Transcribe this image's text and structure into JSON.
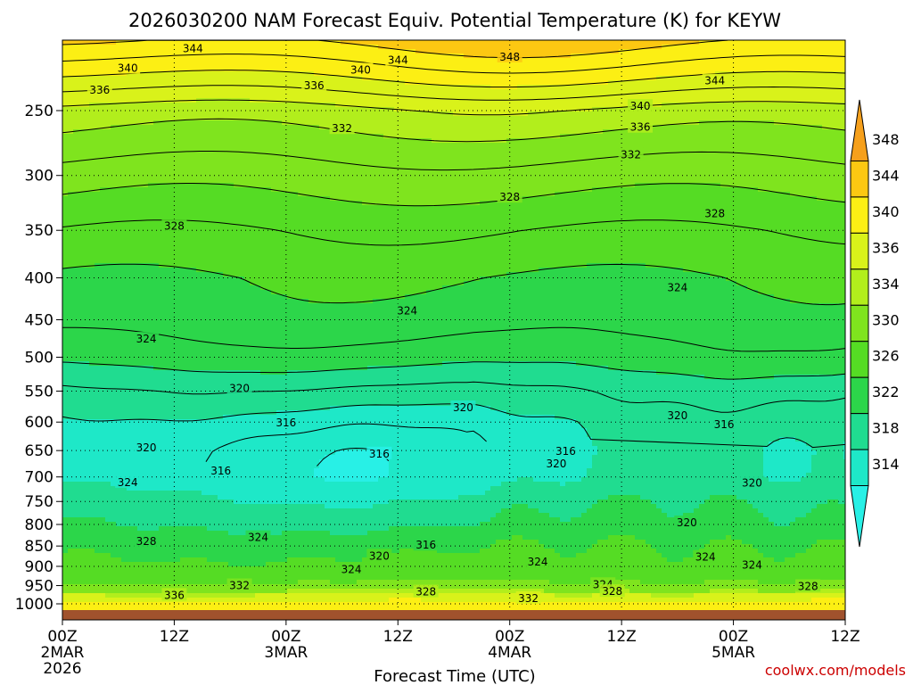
{
  "chart_data": {
    "type": "heatmap",
    "title": "2026030200 NAM Forecast Equiv. Potential Temperature (K) for KEYW",
    "xlabel": "Forecast Time (UTC)",
    "ylabel": "",
    "credit": "coolwx.com/models",
    "x_range_hours": [
      0,
      84
    ],
    "y_range_hpa": [
      1000,
      200
    ],
    "y_scale": "log",
    "grid": true,
    "x_ticks": [
      {
        "hour": 0,
        "label": "00Z",
        "sub": "2MAR",
        "sub2": "2026"
      },
      {
        "hour": 12,
        "label": "12Z",
        "sub": "",
        "sub2": ""
      },
      {
        "hour": 24,
        "label": "00Z",
        "sub": "3MAR",
        "sub2": ""
      },
      {
        "hour": 36,
        "label": "12Z",
        "sub": "",
        "sub2": ""
      },
      {
        "hour": 48,
        "label": "00Z",
        "sub": "4MAR",
        "sub2": ""
      },
      {
        "hour": 60,
        "label": "12Z",
        "sub": "",
        "sub2": ""
      },
      {
        "hour": 72,
        "label": "00Z",
        "sub": "5MAR",
        "sub2": ""
      },
      {
        "hour": 84,
        "label": "12Z",
        "sub": "",
        "sub2": ""
      }
    ],
    "y_ticks": [
      250,
      300,
      350,
      400,
      450,
      500,
      550,
      600,
      650,
      700,
      750,
      800,
      850,
      900,
      950,
      1000
    ],
    "y_tick_labels": [
      "250",
      "300",
      "350",
      "400",
      "450",
      "500",
      "550",
      "600",
      "650",
      "700",
      "750",
      "800",
      "850",
      "900",
      "950",
      "1000"
    ],
    "colorbar": {
      "labels": [
        "348",
        "344",
        "340",
        "336",
        "334",
        "330",
        "326",
        "322",
        "318",
        "314"
      ],
      "colors": [
        "#f6a01c",
        "#fcc812",
        "#fcef14",
        "#d9f21a",
        "#b2ee1c",
        "#7fe41e",
        "#55dc24",
        "#2cd64a",
        "#20dc90",
        "#1ee8c8",
        "#28f0e6"
      ]
    },
    "ground_color": "#a0522d",
    "profile_levels_hpa": [
      1000,
      975,
      950,
      925,
      900,
      850,
      800,
      750,
      700,
      650,
      600,
      550,
      500,
      450,
      400,
      350,
      300,
      250,
      225,
      200
    ],
    "profile_theta_e_k": [
      342,
      336,
      331,
      328,
      327,
      325,
      322,
      320,
      317,
      317,
      318,
      320,
      323,
      325,
      326,
      328,
      331,
      335,
      340,
      345
    ],
    "contour_labels": [
      {
        "text": "344",
        "hour": 14,
        "p": 210
      },
      {
        "text": "340",
        "hour": 7,
        "p": 222
      },
      {
        "text": "336",
        "hour": 4,
        "p": 236
      },
      {
        "text": "344",
        "hour": 36,
        "p": 217
      },
      {
        "text": "348",
        "hour": 48,
        "p": 215
      },
      {
        "text": "340",
        "hour": 32,
        "p": 223
      },
      {
        "text": "336",
        "hour": 27,
        "p": 233
      },
      {
        "text": "332",
        "hour": 30,
        "p": 263
      },
      {
        "text": "344",
        "hour": 70,
        "p": 230
      },
      {
        "text": "340",
        "hour": 62,
        "p": 247
      },
      {
        "text": "336",
        "hour": 62,
        "p": 262
      },
      {
        "text": "332",
        "hour": 61,
        "p": 283
      },
      {
        "text": "328",
        "hour": 48,
        "p": 319
      },
      {
        "text": "328",
        "hour": 70,
        "p": 334
      },
      {
        "text": "328",
        "hour": 12,
        "p": 346
      },
      {
        "text": "324",
        "hour": 66,
        "p": 411
      },
      {
        "text": "324",
        "hour": 37,
        "p": 439
      },
      {
        "text": "324",
        "hour": 9,
        "p": 475
      },
      {
        "text": "320",
        "hour": 19,
        "p": 546
      },
      {
        "text": "320",
        "hour": 43,
        "p": 576
      },
      {
        "text": "320",
        "hour": 66,
        "p": 589
      },
      {
        "text": "316",
        "hour": 24,
        "p": 601
      },
      {
        "text": "316",
        "hour": 71,
        "p": 604
      },
      {
        "text": "320",
        "hour": 9,
        "p": 645
      },
      {
        "text": "316",
        "hour": 34,
        "p": 656
      },
      {
        "text": "316",
        "hour": 54,
        "p": 651
      },
      {
        "text": "320",
        "hour": 53,
        "p": 675
      },
      {
        "text": "316",
        "hour": 17,
        "p": 688
      },
      {
        "text": "324",
        "hour": 7,
        "p": 711
      },
      {
        "text": "320",
        "hour": 74,
        "p": 712
      },
      {
        "text": "320",
        "hour": 67,
        "p": 796
      },
      {
        "text": "328",
        "hour": 9,
        "p": 839
      },
      {
        "text": "324",
        "hour": 21,
        "p": 830
      },
      {
        "text": "316",
        "hour": 39,
        "p": 848
      },
      {
        "text": "320",
        "hour": 34,
        "p": 874
      },
      {
        "text": "324",
        "hour": 31,
        "p": 908
      },
      {
        "text": "324",
        "hour": 51,
        "p": 889
      },
      {
        "text": "324",
        "hour": 69,
        "p": 877
      },
      {
        "text": "324",
        "hour": 74,
        "p": 897
      },
      {
        "text": "324",
        "hour": 58,
        "p": 947
      },
      {
        "text": "328",
        "hour": 80,
        "p": 952
      },
      {
        "text": "332",
        "hour": 19,
        "p": 950
      },
      {
        "text": "328",
        "hour": 39,
        "p": 967
      },
      {
        "text": "328",
        "hour": 59,
        "p": 966
      },
      {
        "text": "336",
        "hour": 12,
        "p": 976
      },
      {
        "text": "332",
        "hour": 50,
        "p": 985
      }
    ]
  }
}
